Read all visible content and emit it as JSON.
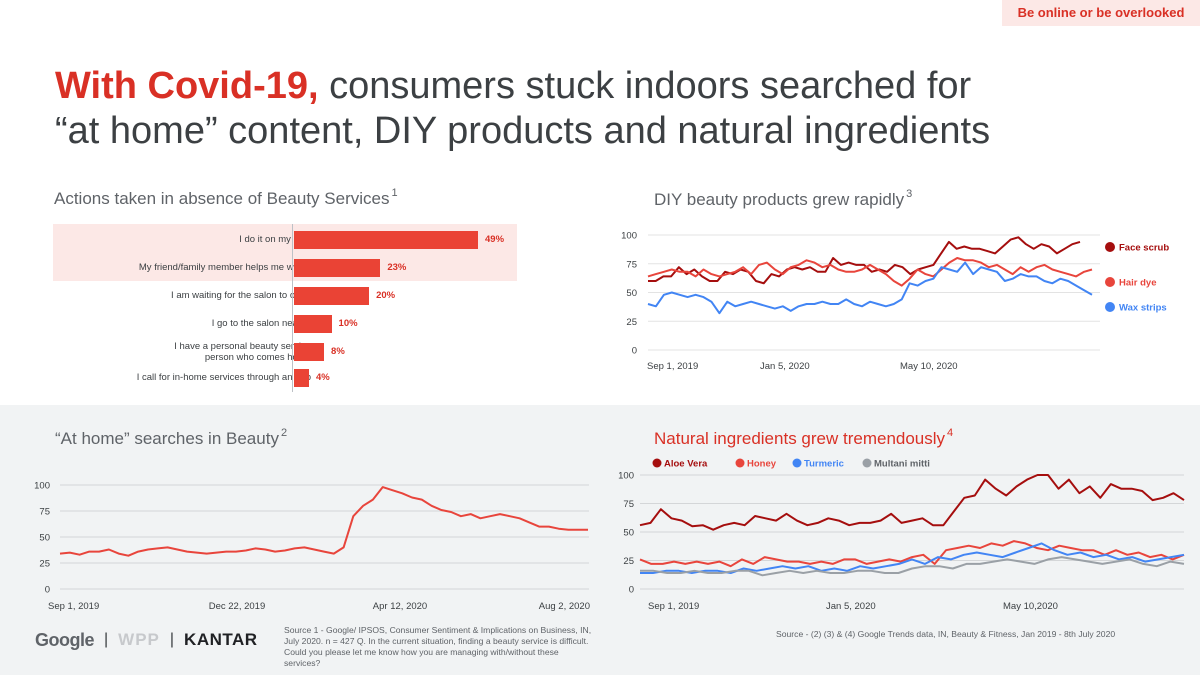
{
  "tag": "Be online or be overlooked",
  "title": {
    "highlight": "With Covid-19,",
    "rest_line1": " consumers stuck indoors searched for",
    "line2": "“at home” content, DIY products and natural ingredients"
  },
  "logos": {
    "google": "Google",
    "wpp": "WPP",
    "kantar": "KANTAR",
    "separator": "|"
  },
  "sources": {
    "source1": "Source 1 - Google/ IPSOS, Consumer Sentiment & Implications on Business, IN, July 2020. n = 427 Q. In the current situation, finding a beauty service is difficult. Could you please let me know how you are managing with/without these services?",
    "source2": "Source - (2) (3) & (4) Google Trends data, IN, Beauty & Fitness, Jan 2019 - 8th July 2020"
  },
  "colors": {
    "accent_red": "#d93025",
    "bar_red": "#ea4335",
    "dark_red": "#a50e0e",
    "blue": "#4285f4",
    "grey": "#9aa0a6"
  },
  "chart_data": [
    {
      "id": "actions",
      "type": "bar",
      "orientation": "horizontal",
      "title": "Actions taken in absence of Beauty Services",
      "footnote": "1",
      "categories": [
        "I do it on my own",
        "My friend/family member helps me with it",
        "I am waiting for the salon to open",
        "I go to the salon nearby",
        "I have a personal beauty service person who comes home",
        "I call for in-home services through an app"
      ],
      "values": [
        49,
        23,
        20,
        10,
        8,
        4
      ],
      "value_labels": [
        "49%",
        "23%",
        "20%",
        "10%",
        "8%",
        "4%"
      ],
      "highlighted": [
        0,
        1
      ],
      "xlim": [
        0,
        60
      ]
    },
    {
      "id": "diy",
      "type": "line",
      "title": "DIY beauty products grew rapidly",
      "footnote": "3",
      "x_tick_labels": [
        "Sep 1, 2019",
        "Jan 5, 2020",
        "May 10, 2020"
      ],
      "ylim": [
        0,
        100
      ],
      "y_ticks": [
        "100",
        "75",
        "50",
        "25",
        "0"
      ],
      "series": [
        {
          "name": "Face scrub",
          "color": "#a50e0e",
          "values": [
            60,
            60,
            64,
            64,
            72,
            66,
            70,
            64,
            60,
            60,
            68,
            66,
            70,
            68,
            60,
            58,
            66,
            64,
            70,
            72,
            70,
            72,
            68,
            68,
            80,
            74,
            76,
            74,
            74,
            68,
            70,
            68,
            74,
            72,
            66,
            70,
            72,
            74,
            84,
            94,
            88,
            90,
            88,
            88,
            86,
            84,
            90,
            96,
            98,
            92,
            88,
            92,
            90,
            84,
            88,
            92,
            94
          ]
        },
        {
          "name": "Hair dye",
          "color": "#e8453c",
          "values": [
            64,
            66,
            68,
            70,
            68,
            68,
            64,
            70,
            66,
            64,
            66,
            68,
            72,
            66,
            74,
            76,
            70,
            66,
            72,
            74,
            78,
            76,
            72,
            74,
            70,
            68,
            68,
            70,
            74,
            70,
            66,
            60,
            56,
            62,
            70,
            66,
            64,
            70,
            76,
            80,
            78,
            78,
            76,
            72,
            74,
            70,
            66,
            72,
            68,
            72,
            74,
            70,
            68,
            66,
            64,
            68,
            70
          ]
        },
        {
          "name": "Wax strips",
          "color": "#4285f4",
          "values": [
            40,
            38,
            48,
            50,
            48,
            46,
            48,
            46,
            42,
            32,
            42,
            38,
            40,
            42,
            40,
            38,
            36,
            38,
            34,
            38,
            40,
            40,
            42,
            40,
            40,
            44,
            40,
            38,
            42,
            40,
            38,
            40,
            44,
            58,
            56,
            60,
            62,
            72,
            70,
            68,
            76,
            66,
            72,
            70,
            68,
            60,
            62,
            66,
            64,
            64,
            60,
            58,
            62,
            60,
            56,
            52,
            48
          ]
        }
      ]
    },
    {
      "id": "at-home",
      "type": "line",
      "title": "“At home” searches  in Beauty",
      "footnote": "2",
      "x_tick_labels": [
        "Sep 1, 2019",
        "Dec 22, 2019",
        "Apr 12, 2020",
        "Aug 2, 2020"
      ],
      "ylim": [
        0,
        100
      ],
      "y_ticks": [
        "100",
        "75",
        "50",
        "25",
        "0"
      ],
      "series": [
        {
          "name": "At home",
          "color": "#e8453c",
          "values": [
            34,
            35,
            33,
            36,
            36,
            38,
            34,
            32,
            36,
            38,
            39,
            40,
            38,
            36,
            35,
            34,
            35,
            36,
            36,
            37,
            39,
            38,
            36,
            37,
            39,
            40,
            38,
            36,
            34,
            40,
            70,
            80,
            86,
            98,
            95,
            92,
            88,
            86,
            80,
            76,
            74,
            70,
            72,
            68,
            70,
            72,
            70,
            68,
            64,
            60,
            60,
            58,
            57,
            57,
            57
          ]
        }
      ]
    },
    {
      "id": "natural",
      "type": "line",
      "title": "Natural ingredients grew tremendously",
      "footnote": "4",
      "x_tick_labels": [
        "Sep 1, 2019",
        "Jan 5, 2020",
        "May 10,2020"
      ],
      "ylim": [
        0,
        100
      ],
      "y_ticks": [
        "100",
        "75",
        "50",
        "25",
        "0"
      ],
      "legend": [
        "Aloe Vera",
        "Honey",
        "Turmeric",
        "Multani mitti"
      ],
      "series": [
        {
          "name": "Aloe Vera",
          "color": "#a50e0e",
          "values": [
            56,
            58,
            70,
            62,
            60,
            55,
            56,
            52,
            56,
            58,
            56,
            64,
            62,
            60,
            66,
            60,
            56,
            58,
            62,
            60,
            56,
            58,
            58,
            60,
            66,
            58,
            60,
            62,
            56,
            56,
            68,
            80,
            82,
            96,
            88,
            82,
            90,
            96,
            100,
            100,
            88,
            96,
            84,
            90,
            80,
            92,
            88,
            88,
            86,
            78,
            80,
            84,
            78
          ]
        },
        {
          "name": "Honey",
          "color": "#e8453c",
          "values": [
            26,
            22,
            22,
            24,
            22,
            24,
            22,
            24,
            20,
            26,
            22,
            28,
            26,
            24,
            24,
            22,
            24,
            22,
            26,
            26,
            22,
            24,
            26,
            24,
            28,
            30,
            22,
            34,
            36,
            38,
            36,
            40,
            38,
            42,
            40,
            36,
            34,
            38,
            36,
            34,
            34,
            30,
            34,
            30,
            32,
            28,
            30,
            26,
            30
          ]
        },
        {
          "name": "Turmeric",
          "color": "#4285f4",
          "values": [
            14,
            14,
            16,
            16,
            14,
            16,
            16,
            14,
            18,
            16,
            18,
            20,
            18,
            20,
            16,
            18,
            16,
            20,
            18,
            20,
            22,
            26,
            22,
            28,
            26,
            30,
            32,
            30,
            28,
            32,
            36,
            40,
            34,
            30,
            32,
            28,
            30,
            26,
            28,
            24,
            26,
            28,
            30
          ]
        },
        {
          "name": "Multani mitti",
          "color": "#9aa0a6",
          "values": [
            16,
            16,
            14,
            14,
            16,
            14,
            14,
            16,
            16,
            12,
            14,
            16,
            14,
            16,
            14,
            14,
            16,
            16,
            14,
            14,
            18,
            20,
            20,
            18,
            22,
            22,
            24,
            26,
            24,
            22,
            26,
            28,
            26,
            24,
            22,
            24,
            26,
            22,
            20,
            24,
            22
          ]
        }
      ]
    }
  ]
}
